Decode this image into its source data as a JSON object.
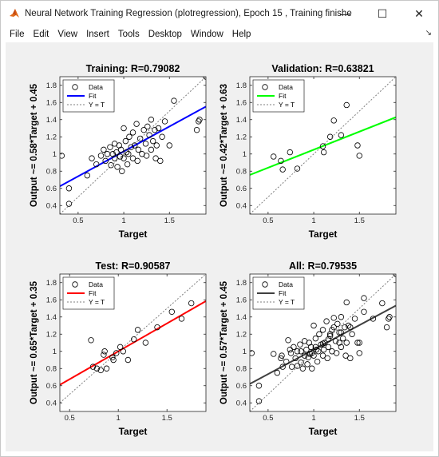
{
  "window": {
    "title": "Neural Network Training Regression (plotregression), Epoch 15 , Training finished: Met validation c...",
    "minimize_glyph": "—",
    "maximize_glyph": "☐",
    "close_glyph": "✕"
  },
  "menu": {
    "items": [
      "File",
      "Edit",
      "View",
      "Insert",
      "Tools",
      "Desktop",
      "Window",
      "Help"
    ],
    "dock_glyph": "↘"
  },
  "legend_labels": [
    "Data",
    "Fit",
    "Y = T"
  ],
  "chart_data": [
    {
      "type": "scatter",
      "title": "Training: R=0.79082",
      "xlabel": "Target",
      "ylabel": "Output ~= 0.58*Target + 0.45",
      "xlim": [
        0.3,
        1.9
      ],
      "ylim": [
        0.3,
        1.9
      ],
      "xticks": [
        "0.5",
        "1",
        "1.5"
      ],
      "xtick_values": [
        0.5,
        1,
        1.5
      ],
      "yticks": [
        "0.4",
        "0.6",
        "0.8",
        "1",
        "1.2",
        "1.4",
        "1.6",
        "1.8"
      ],
      "ytick_values": [
        0.4,
        0.6,
        0.8,
        1,
        1.2,
        1.4,
        1.6,
        1.8
      ],
      "legend_position": "top-left",
      "fit": {
        "slope": 0.58,
        "intercept": 0.45,
        "color": "#0000ff"
      },
      "points": [
        [
          0.32,
          0.98
        ],
        [
          0.4,
          0.6
        ],
        [
          0.4,
          0.42
        ],
        [
          0.6,
          0.75
        ],
        [
          0.65,
          0.95
        ],
        [
          0.7,
          0.88
        ],
        [
          0.75,
          0.98
        ],
        [
          0.78,
          1.05
        ],
        [
          0.8,
          0.92
        ],
        [
          0.82,
          1.0
        ],
        [
          0.85,
          1.08
        ],
        [
          0.86,
          0.87
        ],
        [
          0.88,
          1.0
        ],
        [
          0.9,
          1.12
        ],
        [
          0.9,
          0.95
        ],
        [
          0.92,
          1.02
        ],
        [
          0.93,
          0.85
        ],
        [
          0.95,
          1.1
        ],
        [
          0.96,
          0.97
        ],
        [
          0.97,
          1.05
        ],
        [
          0.98,
          0.8
        ],
        [
          1.0,
          1.3
        ],
        [
          1.0,
          0.95
        ],
        [
          1.02,
          1.15
        ],
        [
          1.03,
          1.02
        ],
        [
          1.04,
          0.88
        ],
        [
          1.05,
          1.0
        ],
        [
          1.06,
          1.2
        ],
        [
          1.08,
          1.08
        ],
        [
          1.1,
          0.95
        ],
        [
          1.1,
          1.25
        ],
        [
          1.12,
          1.1
        ],
        [
          1.14,
          1.35
        ],
        [
          1.15,
          0.92
        ],
        [
          1.16,
          1.05
        ],
        [
          1.18,
          1.18
        ],
        [
          1.2,
          1.0
        ],
        [
          1.22,
          1.28
        ],
        [
          1.24,
          1.12
        ],
        [
          1.25,
          0.98
        ],
        [
          1.26,
          1.32
        ],
        [
          1.28,
          1.22
        ],
        [
          1.3,
          1.05
        ],
        [
          1.3,
          1.4
        ],
        [
          1.32,
          1.15
        ],
        [
          1.34,
          1.28
        ],
        [
          1.35,
          0.95
        ],
        [
          1.36,
          1.1
        ],
        [
          1.38,
          1.3
        ],
        [
          1.4,
          0.92
        ],
        [
          1.42,
          1.2
        ],
        [
          1.45,
          1.38
        ],
        [
          1.5,
          1.1
        ],
        [
          1.55,
          1.62
        ],
        [
          1.8,
          1.28
        ],
        [
          1.82,
          1.38
        ],
        [
          1.83,
          1.4
        ],
        [
          1.9,
          1.9
        ]
      ]
    },
    {
      "type": "scatter",
      "title": "Validation: R=0.63821",
      "xlabel": "Target",
      "ylabel": "Output ~= 0.42*Target + 0.63",
      "xlim": [
        0.3,
        1.9
      ],
      "ylim": [
        0.3,
        1.9
      ],
      "xticks": [
        "0.5",
        "1",
        "1.5"
      ],
      "xtick_values": [
        0.5,
        1,
        1.5
      ],
      "yticks": [
        "0.4",
        "0.6",
        "0.8",
        "1",
        "1.2",
        "1.4",
        "1.6",
        "1.8"
      ],
      "ytick_values": [
        0.4,
        0.6,
        0.8,
        1,
        1.2,
        1.4,
        1.6,
        1.8
      ],
      "legend_position": "top-left",
      "fit": {
        "slope": 0.42,
        "intercept": 0.63,
        "color": "#00ff00"
      },
      "points": [
        [
          0.56,
          0.97
        ],
        [
          0.64,
          0.92
        ],
        [
          0.66,
          0.82
        ],
        [
          0.74,
          1.02
        ],
        [
          0.82,
          0.83
        ],
        [
          1.1,
          1.09
        ],
        [
          1.11,
          1.02
        ],
        [
          1.18,
          1.2
        ],
        [
          1.22,
          1.39
        ],
        [
          1.3,
          1.22
        ],
        [
          1.36,
          1.57
        ],
        [
          1.48,
          1.1
        ],
        [
          1.5,
          0.98
        ]
      ]
    },
    {
      "type": "scatter",
      "title": "Test: R=0.90587",
      "xlabel": "Target",
      "ylabel": "Output ~= 0.65*Target + 0.35",
      "xlim": [
        0.4,
        1.9
      ],
      "ylim": [
        0.3,
        1.9
      ],
      "xticks": [
        "0.5",
        "1",
        "1.5"
      ],
      "xtick_values": [
        0.5,
        1,
        1.5
      ],
      "yticks": [
        "0.4",
        "0.6",
        "0.8",
        "1",
        "1.2",
        "1.4",
        "1.6",
        "1.8"
      ],
      "ytick_values": [
        0.4,
        0.6,
        0.8,
        1,
        1.2,
        1.4,
        1.6,
        1.8
      ],
      "legend_position": "top-left",
      "fit": {
        "slope": 0.65,
        "intercept": 0.35,
        "color": "#ff0000"
      },
      "points": [
        [
          0.72,
          1.13
        ],
        [
          0.74,
          0.82
        ],
        [
          0.78,
          0.8
        ],
        [
          0.82,
          0.78
        ],
        [
          0.85,
          0.96
        ],
        [
          0.86,
          1.0
        ],
        [
          0.88,
          0.8
        ],
        [
          0.94,
          0.93
        ],
        [
          0.95,
          0.9
        ],
        [
          0.98,
          0.98
        ],
        [
          1.02,
          1.05
        ],
        [
          1.05,
          1.0
        ],
        [
          1.1,
          0.9
        ],
        [
          1.16,
          1.14
        ],
        [
          1.2,
          1.25
        ],
        [
          1.28,
          1.1
        ],
        [
          1.4,
          1.28
        ],
        [
          1.55,
          1.46
        ],
        [
          1.65,
          1.38
        ],
        [
          1.75,
          1.56
        ]
      ]
    },
    {
      "type": "scatter",
      "title": "All: R=0.79535",
      "xlabel": "Target",
      "ylabel": "Output ~= 0.57*Target + 0.45",
      "xlim": [
        0.3,
        1.9
      ],
      "ylim": [
        0.3,
        1.9
      ],
      "xticks": [
        "0.5",
        "1",
        "1.5"
      ],
      "xtick_values": [
        0.5,
        1,
        1.5
      ],
      "yticks": [
        "0.4",
        "0.6",
        "0.8",
        "1",
        "1.2",
        "1.4",
        "1.6",
        "1.8"
      ],
      "ytick_values": [
        0.4,
        0.6,
        0.8,
        1,
        1.2,
        1.4,
        1.6,
        1.8
      ],
      "legend_position": "top-left",
      "fit": {
        "slope": 0.57,
        "intercept": 0.45,
        "color": "#404040"
      },
      "points": [
        [
          0.32,
          0.98
        ],
        [
          0.4,
          0.6
        ],
        [
          0.4,
          0.42
        ],
        [
          0.56,
          0.97
        ],
        [
          0.6,
          0.75
        ],
        [
          0.64,
          0.92
        ],
        [
          0.65,
          0.95
        ],
        [
          0.66,
          0.82
        ],
        [
          0.7,
          0.88
        ],
        [
          0.72,
          1.13
        ],
        [
          0.74,
          1.02
        ],
        [
          0.75,
          0.98
        ],
        [
          0.76,
          0.82
        ],
        [
          0.78,
          1.05
        ],
        [
          0.8,
          0.92
        ],
        [
          0.82,
          0.83
        ],
        [
          0.82,
          1.0
        ],
        [
          0.85,
          1.08
        ],
        [
          0.86,
          0.87
        ],
        [
          0.86,
          1.0
        ],
        [
          0.88,
          0.8
        ],
        [
          0.9,
          1.12
        ],
        [
          0.9,
          0.95
        ],
        [
          0.92,
          1.02
        ],
        [
          0.93,
          0.85
        ],
        [
          0.94,
          0.93
        ],
        [
          0.95,
          1.1
        ],
        [
          0.96,
          0.97
        ],
        [
          0.97,
          1.05
        ],
        [
          0.98,
          0.8
        ],
        [
          0.98,
          0.98
        ],
        [
          1.0,
          1.3
        ],
        [
          1.0,
          0.95
        ],
        [
          1.02,
          1.15
        ],
        [
          1.02,
          1.05
        ],
        [
          1.03,
          1.02
        ],
        [
          1.04,
          0.88
        ],
        [
          1.05,
          1.0
        ],
        [
          1.06,
          1.2
        ],
        [
          1.08,
          1.08
        ],
        [
          1.1,
          0.95
        ],
        [
          1.1,
          1.25
        ],
        [
          1.1,
          1.09
        ],
        [
          1.11,
          1.02
        ],
        [
          1.12,
          1.1
        ],
        [
          1.14,
          1.35
        ],
        [
          1.15,
          0.92
        ],
        [
          1.16,
          1.05
        ],
        [
          1.16,
          1.14
        ],
        [
          1.18,
          1.18
        ],
        [
          1.18,
          1.2
        ],
        [
          1.2,
          1.0
        ],
        [
          1.2,
          1.25
        ],
        [
          1.22,
          1.28
        ],
        [
          1.22,
          1.39
        ],
        [
          1.24,
          1.12
        ],
        [
          1.25,
          0.98
        ],
        [
          1.26,
          1.32
        ],
        [
          1.28,
          1.22
        ],
        [
          1.28,
          1.1
        ],
        [
          1.3,
          1.05
        ],
        [
          1.3,
          1.4
        ],
        [
          1.3,
          1.22
        ],
        [
          1.32,
          1.15
        ],
        [
          1.34,
          1.28
        ],
        [
          1.35,
          0.95
        ],
        [
          1.36,
          1.1
        ],
        [
          1.36,
          1.57
        ],
        [
          1.38,
          1.3
        ],
        [
          1.4,
          0.92
        ],
        [
          1.4,
          1.28
        ],
        [
          1.42,
          1.2
        ],
        [
          1.45,
          1.38
        ],
        [
          1.48,
          1.1
        ],
        [
          1.5,
          1.1
        ],
        [
          1.5,
          0.98
        ],
        [
          1.55,
          1.62
        ],
        [
          1.55,
          1.46
        ],
        [
          1.65,
          1.38
        ],
        [
          1.75,
          1.56
        ],
        [
          1.8,
          1.28
        ],
        [
          1.82,
          1.38
        ],
        [
          1.83,
          1.4
        ],
        [
          1.9,
          1.9
        ]
      ]
    }
  ],
  "colors": {
    "figure_bg": "#f0f0f0",
    "axes_bg": "#ffffff",
    "marker": "#000000",
    "identity_line": "#7f7f7f"
  }
}
